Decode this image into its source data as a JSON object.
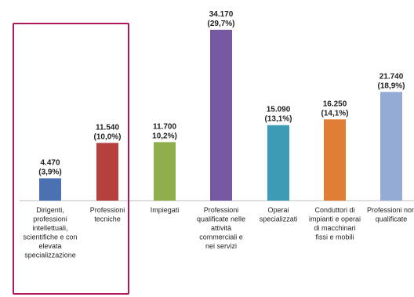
{
  "chart_data": {
    "type": "bar",
    "categories": [
      [
        "Dirigenti,",
        "professioni",
        "intellettuali,",
        "scientifiche e con",
        "elevata",
        "specializzazione"
      ],
      [
        "Professioni",
        "tecniche"
      ],
      [
        "Impiegati"
      ],
      [
        "Professioni",
        "qualificate nelle",
        "attività",
        "commerciali e",
        "nei servizi"
      ],
      [
        "Operai",
        "specializzati"
      ],
      [
        "Conduttori di",
        "impianti e operai",
        "di macchinari",
        "fissi e mobili"
      ],
      [
        "Professioni non",
        "qualificate"
      ]
    ],
    "values": [
      4470,
      11540,
      11700,
      34170,
      15090,
      16250,
      21740
    ],
    "value_labels": [
      "4.470",
      "11.540",
      "11.700",
      "34.170",
      "15.090",
      "16.250",
      "21.740"
    ],
    "share_labels": [
      "(3,9%)",
      "(10,0%)",
      "10,2%)",
      "(29,7%)",
      "(13,1%)",
      "(14,1%)",
      "(18,9%)"
    ],
    "colors": [
      "#4a72b0",
      "#b5403d",
      "#8fae4c",
      "#7558a0",
      "#3e9bb5",
      "#e07e35",
      "#93aad5"
    ],
    "highlight_color": "#b0175b",
    "ylim": [
      0,
      34170
    ]
  }
}
